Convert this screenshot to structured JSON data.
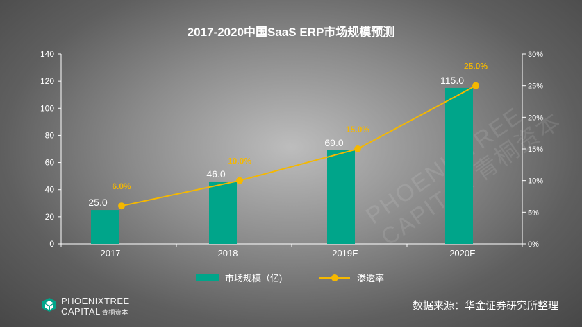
{
  "chart_data": {
    "type": "bar",
    "title": "2017-2020中国SaaS ERP市场规模预测",
    "categories": [
      "2017",
      "2018",
      "2019E",
      "2020E"
    ],
    "series": [
      {
        "name": "市场规模（亿)",
        "type": "bar",
        "axis": "left",
        "values": [
          25.0,
          46.0,
          69.0,
          115.0
        ],
        "labels": [
          "25.0",
          "46.0",
          "69.0",
          "115.0"
        ],
        "color": "#00a58a"
      },
      {
        "name": "渗透率",
        "type": "line",
        "axis": "right",
        "values": [
          6.0,
          10.0,
          15.0,
          25.0
        ],
        "labels": [
          "6.0%",
          "10.0%",
          "15.0%",
          "25.0%"
        ],
        "color": "#f5b800"
      }
    ],
    "ylim": [
      0,
      140
    ],
    "y_ticks": [
      "0",
      "20",
      "40",
      "60",
      "80",
      "100",
      "120",
      "140"
    ],
    "y2lim": [
      0,
      30
    ],
    "y2_ticks": [
      "0%",
      "5%",
      "10%",
      "15%",
      "20%",
      "25%",
      "30%"
    ],
    "xlabel": "",
    "ylabel": "",
    "legend_position": "bottom-center",
    "grid": false
  },
  "branding": {
    "logo_line1": "PHOENIXTREE",
    "logo_line2": "CAPITAL",
    "logo_cn": "青桐资本",
    "watermark_line1": "PHOENIXTREE",
    "watermark_line2": "CAPITAL 青桐资本"
  },
  "source_note": "数据来源：华金证券研究所整理",
  "colors": {
    "bar": "#00a58a",
    "line": "#f5b800",
    "line_label": "#f5b800",
    "axis": "#ffffff",
    "text": "#ffffff"
  }
}
